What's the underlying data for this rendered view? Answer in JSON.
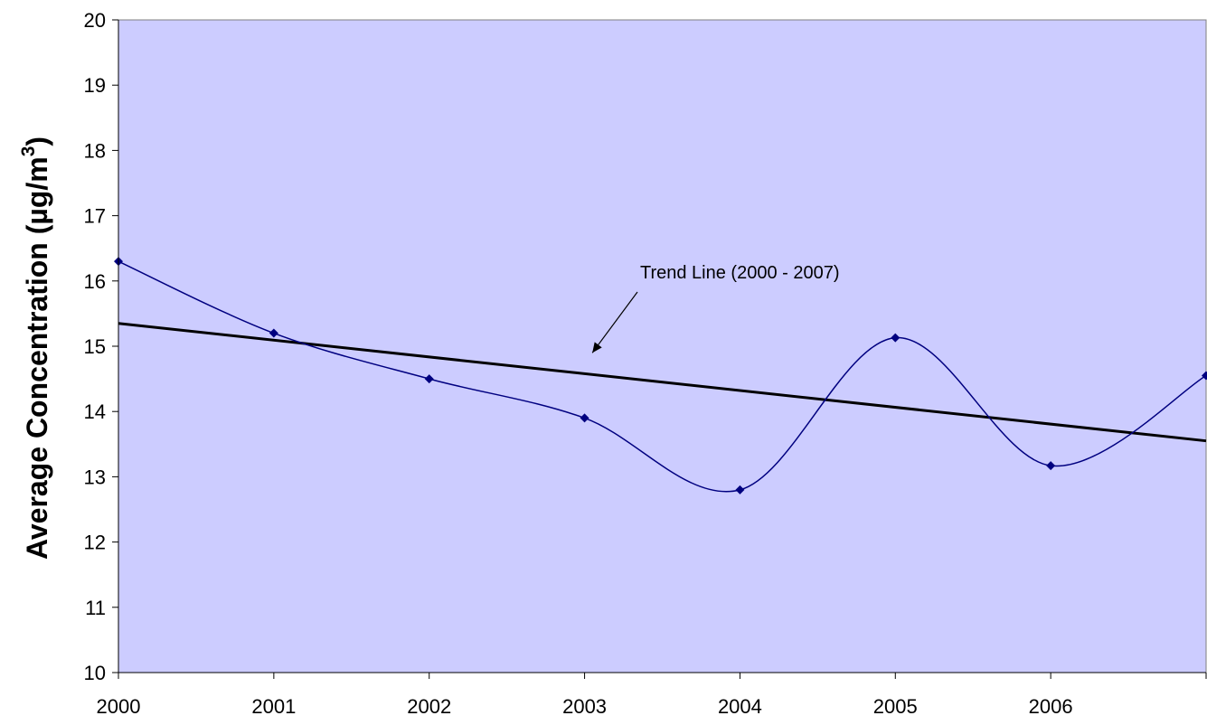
{
  "chart_data": {
    "type": "line",
    "title": "",
    "xlabel": "",
    "ylabel": "Average Concentration (µg/m",
    "ylabel_superscript": "3",
    "ylabel_suffix": ")",
    "x": [
      2000,
      2001,
      2002,
      2003,
      2004,
      2005,
      2006,
      2007
    ],
    "x_tick_labels": [
      "2000",
      "2001",
      "2002",
      "2003",
      "2004",
      "2005",
      "2006"
    ],
    "xlim": [
      2000,
      2007
    ],
    "ylim": [
      10,
      20
    ],
    "y_ticks": [
      10,
      11,
      12,
      13,
      14,
      15,
      16,
      17,
      18,
      19,
      20
    ],
    "y_tick_labels": [
      "10",
      "11",
      "12",
      "13",
      "14",
      "15",
      "16",
      "17",
      "18",
      "19",
      "20"
    ],
    "series": [
      {
        "values": [
          16.3,
          15.2,
          14.5,
          13.9,
          12.8,
          15.13,
          13.17,
          14.55
        ],
        "color": "#000080",
        "smooth": true,
        "marker": "diamond"
      }
    ],
    "trend_line": {
      "start": [
        2000,
        15.35
      ],
      "end": [
        2007,
        13.55
      ],
      "color": "#000000"
    },
    "annotation": {
      "text": "Trend Line (2000 - 2007)",
      "arrow_tip": [
        2003.05,
        14.9
      ]
    },
    "plot_background": "#ccccff",
    "grid": false,
    "legend": "none"
  }
}
